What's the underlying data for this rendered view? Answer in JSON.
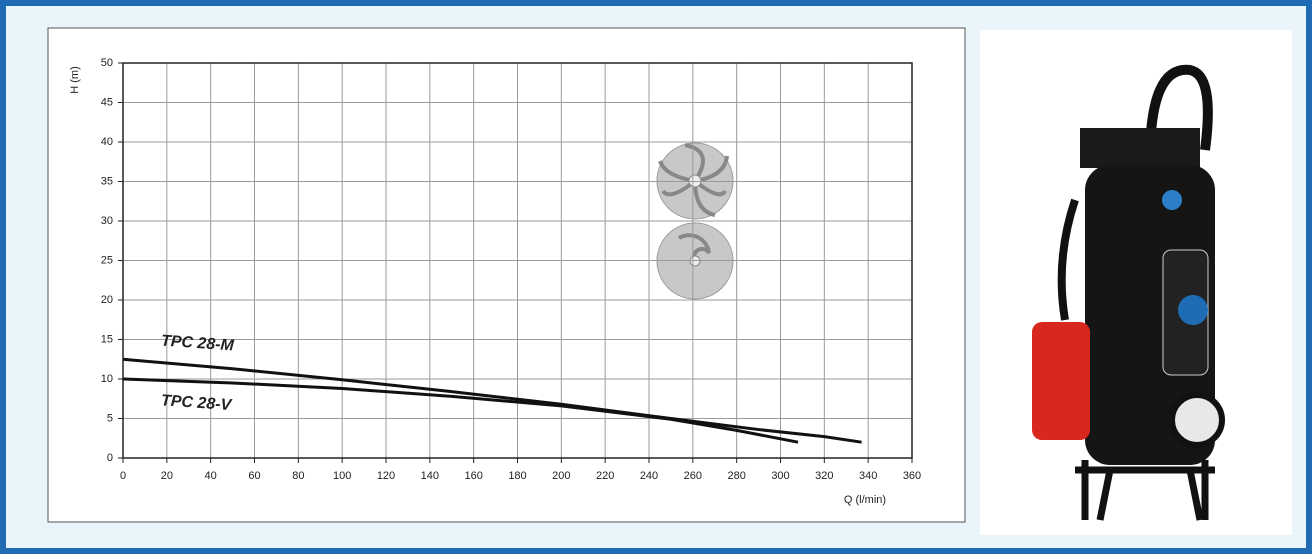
{
  "chart_data": {
    "type": "line",
    "xlabel": "Q (l/min)",
    "ylabel": "H (m)",
    "xlim": [
      0,
      360
    ],
    "xticks": [
      0,
      20,
      40,
      60,
      80,
      100,
      120,
      140,
      160,
      180,
      200,
      220,
      240,
      260,
      280,
      300,
      320,
      340,
      360
    ],
    "ylim": [
      0,
      50
    ],
    "yticks": [
      0,
      5,
      10,
      15,
      20,
      25,
      30,
      35,
      40,
      45,
      50
    ],
    "grid": true,
    "series": [
      {
        "name": "TPC 28-M",
        "color": "#111111",
        "x": [
          0,
          50,
          100,
          150,
          200,
          250,
          290,
          320,
          337
        ],
        "values": [
          12.5,
          11.3,
          9.9,
          8.4,
          6.8,
          5.0,
          3.6,
          2.7,
          2.0
        ]
      },
      {
        "name": "TPC 28-V",
        "color": "#111111",
        "x": [
          0,
          50,
          100,
          150,
          200,
          250,
          280,
          308
        ],
        "values": [
          10.0,
          9.5,
          8.8,
          7.8,
          6.6,
          4.9,
          3.5,
          2.0
        ]
      }
    ]
  }
}
